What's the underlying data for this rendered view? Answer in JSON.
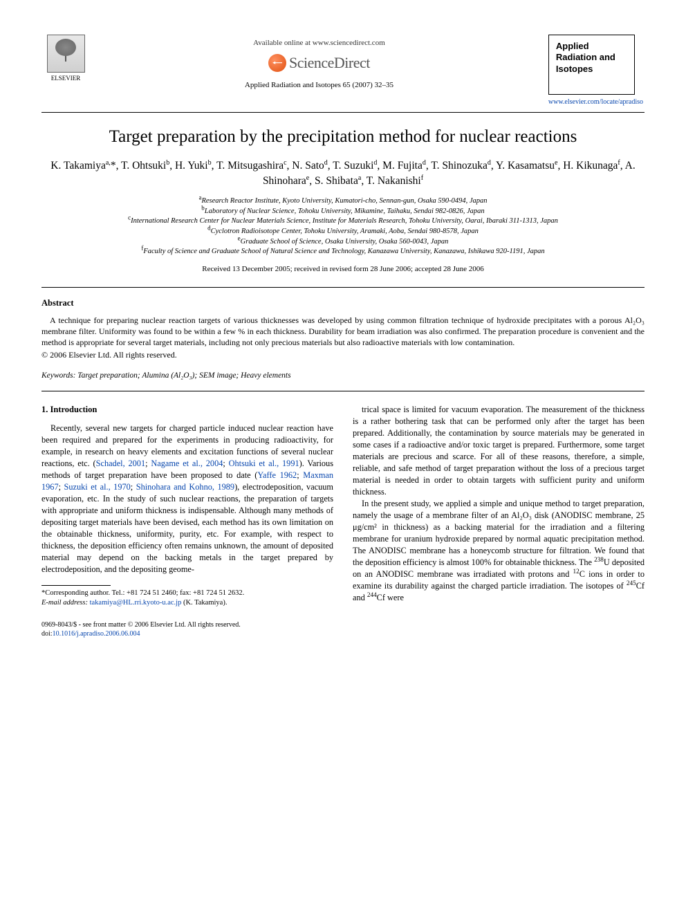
{
  "header": {
    "publisher_name": "ELSEVIER",
    "available_text": "Available online at www.sciencedirect.com",
    "sd_brand": "ScienceDirect",
    "journal_ref": "Applied Radiation and Isotopes 65 (2007) 32–35",
    "journal_box_line1": "Applied",
    "journal_box_line2": "Radiation and",
    "journal_box_line3": "Isotopes",
    "journal_url": "www.elsevier.com/locate/apradiso"
  },
  "title": "Target preparation by the precipitation method for nuclear reactions",
  "authors_html": "K. Takamiya<sup>a,</sup>*, T. Ohtsuki<sup>b</sup>, H. Yuki<sup>b</sup>, T. Mitsugashira<sup>c</sup>, N. Sato<sup>d</sup>, T. Suzuki<sup>d</sup>, M. Fujita<sup>d</sup>, T. Shinozuka<sup>d</sup>, Y. Kasamatsu<sup>e</sup>, H. Kikunaga<sup>f</sup>, A. Shinohara<sup>e</sup>, S. Shibata<sup>a</sup>, T. Nakanishi<sup>f</sup>",
  "affiliations": [
    {
      "sup": "a",
      "text": "Research Reactor Institute, Kyoto University, Kumatori-cho, Sennan-gun, Osaka 590-0494, Japan"
    },
    {
      "sup": "b",
      "text": "Laboratory of Nuclear Science, Tohoku University, Mikamine, Taihaku, Sendai 982-0826, Japan"
    },
    {
      "sup": "c",
      "text": "International Research Center for Nuclear Materials Science, Institute for Materials Research, Tohoku University, Oarai, Ibaraki 311-1313, Japan"
    },
    {
      "sup": "d",
      "text": "Cyclotron Radioisotope Center, Tohoku University, Aramaki, Aoba, Sendai 980-8578, Japan"
    },
    {
      "sup": "e",
      "text": "Graduate School of Science, Osaka University, Osaka 560-0043, Japan"
    },
    {
      "sup": "f",
      "text": "Faculty of Science and Graduate School of Natural Science and Technology, Kanazawa University, Kanazawa, Ishikawa 920-1191, Japan"
    }
  ],
  "dates": "Received 13 December 2005; received in revised form 28 June 2006; accepted 28 June 2006",
  "abstract": {
    "heading": "Abstract",
    "body": "A technique for preparing nuclear reaction targets of various thicknesses was developed by using common filtration technique of hydroxide precipitates with a porous Al₂O₃ membrane filter. Uniformity was found to be within a few % in each thickness. Durability for beam irradiation was also confirmed. The preparation procedure is convenient and the method is appropriate for several target materials, including not only precious materials but also radioactive materials with low contamination.",
    "copyright": "© 2006 Elsevier Ltd. All rights reserved."
  },
  "keywords": {
    "label": "Keywords:",
    "text": " Target preparation; Alumina (Al₂O₃); SEM image; Heavy elements"
  },
  "section1": {
    "heading": "1. Introduction",
    "col1_p1_html": "Recently, several new targets for charged particle induced nuclear reaction have been required and prepared for the experiments in producing radioactivity, for example, in research on heavy elements and excitation functions of several nuclear reactions, etc. (<span class=\"ref\">Schadel, 2001</span>; <span class=\"ref\">Nagame et al., 2004</span>; <span class=\"ref\">Ohtsuki et al., 1991</span>). Various methods of target preparation have been proposed to date (<span class=\"ref\">Yaffe 1962</span>; <span class=\"ref\">Maxman 1967</span>; <span class=\"ref\">Suzuki et al., 1970</span>; <span class=\"ref\">Shinohara and Kohno, 1989</span>), electrodeposition, vacuum evaporation, etc. In the study of such nuclear reactions, the preparation of targets with appropriate and uniform thickness is indispensable. Although many methods of depositing target materials have been devised, each method has its own limitation on the obtainable thickness, uniformity, purity, etc. For example, with respect to thickness, the deposition efficiency often remains unknown, the amount of deposited material may depend on the backing metals in the target prepared by electrodeposition, and the depositing geome-",
    "col2_p1": "trical space is limited for vacuum evaporation. The measurement of the thickness is a rather bothering task that can be performed only after the target has been prepared. Additionally, the contamination by source materials may be generated in some cases if a radioactive and/or toxic target is prepared. Furthermore, some target materials are precious and scarce. For all of these reasons, therefore, a simple, reliable, and safe method of target preparation without the loss of a precious target material is needed in order to obtain targets with sufficient purity and uniform thickness.",
    "col2_p2_html": "In the present study, we applied a simple and unique method to target preparation, namely the usage of a membrane filter of an Al₂O₃ disk (ANODISC membrane, 25 μg/cm² in thickness) as a backing material for the irradiation and a filtering membrane for uranium hydroxide prepared by normal aquatic precipitation method. The ANODISC membrane has a honeycomb structure for filtration. We found that the deposition efficiency is almost 100% for obtainable thickness. The <sup>238</sup>U deposited on an ANODISC membrane was irradiated with protons and <sup>12</sup>C ions in order to examine its durability against the charged particle irradiation. The isotopes of <sup>245</sup>Cf and <sup>244</sup>Cf were"
  },
  "footnote": {
    "corr": "*Corresponding author. Tel.: +81 724 51 2460; fax: +81 724 51 2632.",
    "email_label": "E-mail address:",
    "email": "takamiya@HL.rri.kyoto-u.ac.jp",
    "email_who": " (K. Takamiya)."
  },
  "bottom": {
    "line1": "0969-8043/$ - see front matter © 2006 Elsevier Ltd. All rights reserved.",
    "line2": "doi:10.1016/j.apradiso.2006.06.004"
  },
  "colors": {
    "link": "#0645ad",
    "text": "#000000",
    "sd_orange": "#e05010"
  }
}
